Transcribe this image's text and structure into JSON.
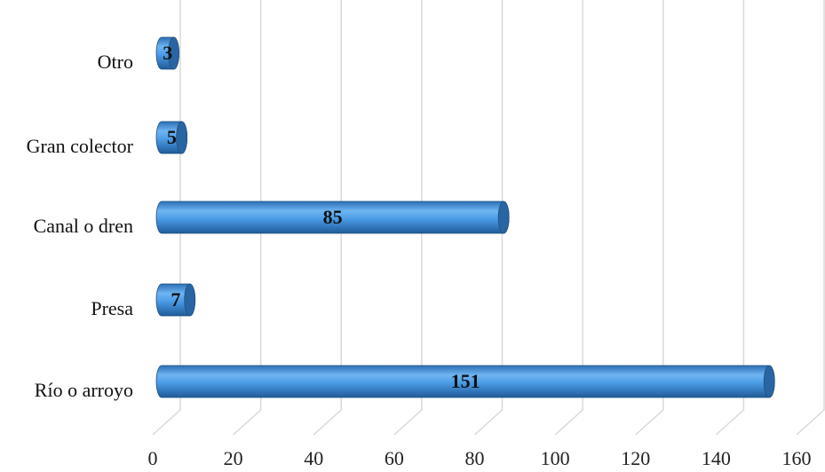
{
  "chart_data": {
    "type": "bar",
    "orientation": "horizontal",
    "categories": [
      "Río o arroyo",
      "Presa",
      "Canal o dren",
      "Gran colector",
      "Otro"
    ],
    "values": [
      151,
      7,
      85,
      5,
      3
    ],
    "color": "#4a9be6",
    "xlim": [
      0,
      160
    ],
    "xticks": [
      0,
      20,
      40,
      60,
      80,
      100,
      120,
      140,
      160
    ],
    "grid": true
  }
}
